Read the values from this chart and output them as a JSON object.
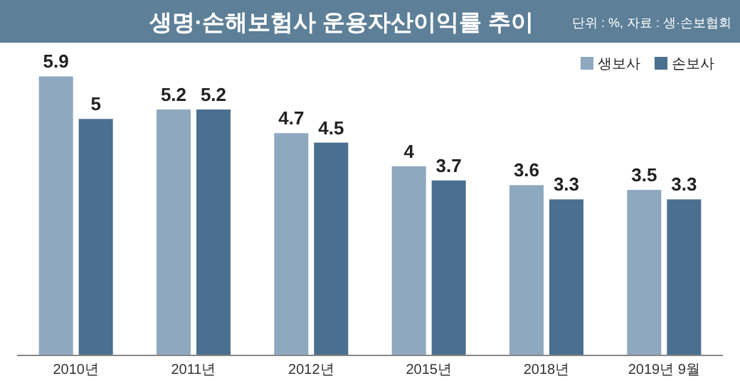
{
  "chart_data": {
    "type": "bar",
    "title": "생명·손해보험사 운용자산이익률 추이",
    "annotations": [
      "단위 : %, 자료 : 생·손보협회"
    ],
    "categories": [
      "2010년",
      "2011년",
      "2012년",
      "2015년",
      "2018년",
      "2019년 9월"
    ],
    "series": [
      {
        "name": "생보사",
        "color": "#8ea8c0",
        "values": [
          5.9,
          5.2,
          4.7,
          4,
          3.6,
          3.5
        ]
      },
      {
        "name": "손보사",
        "color": "#4b6f8e",
        "values": [
          5,
          5.2,
          4.5,
          3.7,
          3.3,
          3.3
        ]
      }
    ],
    "data_labels": true,
    "legend": "top right"
  }
}
